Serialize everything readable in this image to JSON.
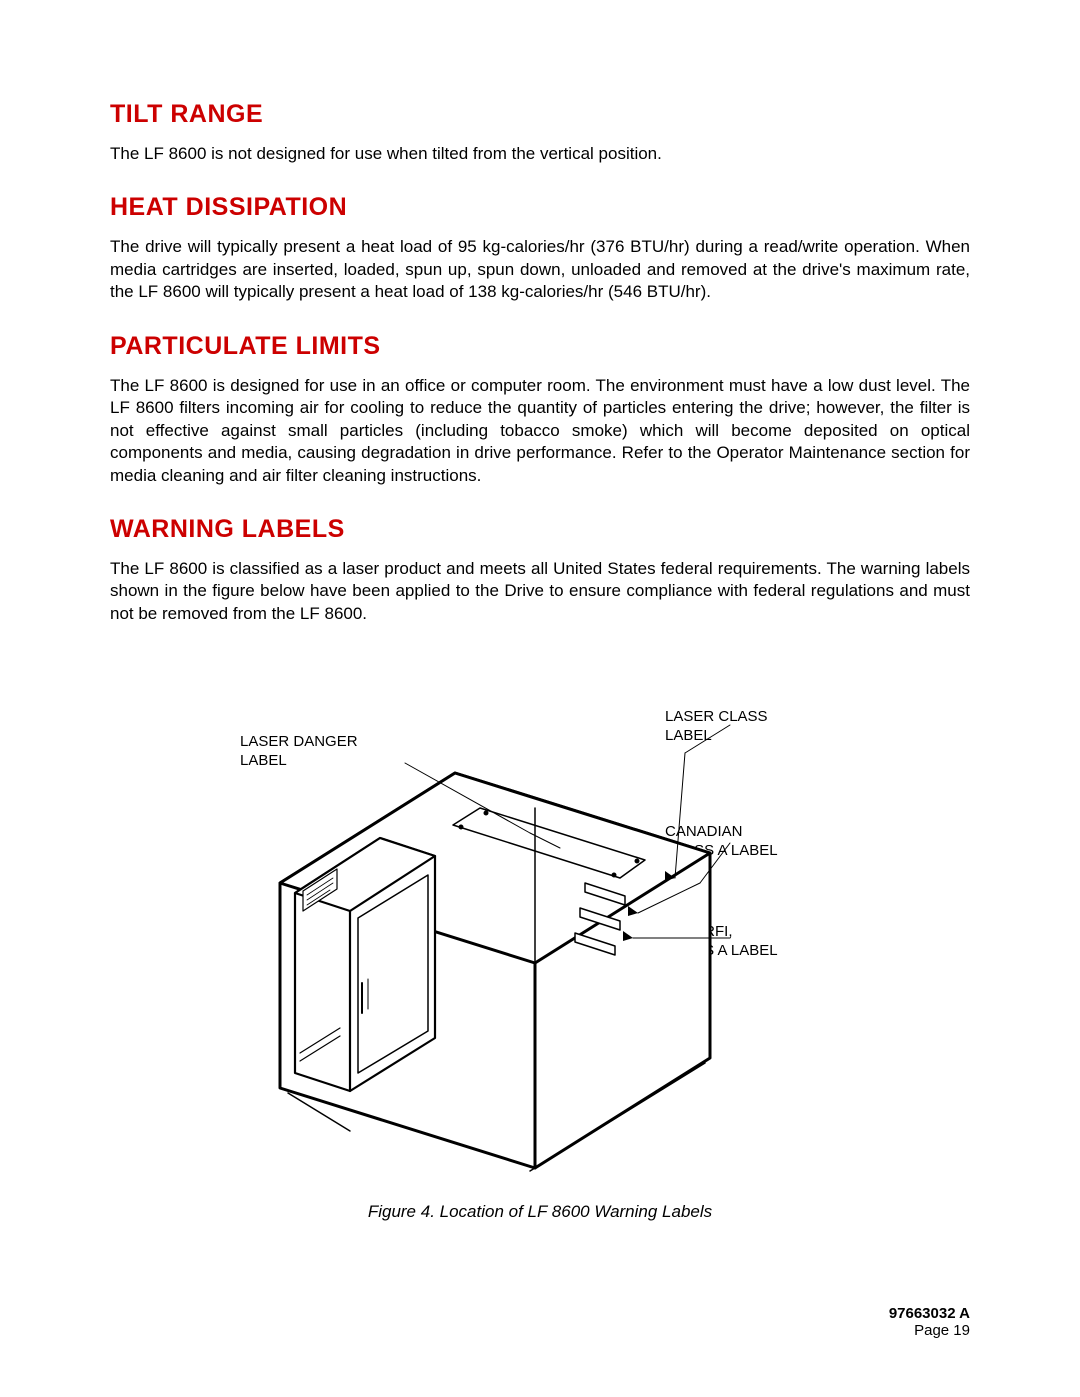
{
  "headings": {
    "tilt": {
      "text": "TILT RANGE",
      "color": "#cc0000"
    },
    "heat": {
      "text": "HEAT DISSIPATION",
      "color": "#cc0000"
    },
    "particulate": {
      "text": "PARTICULATE LIMITS",
      "color": "#cc0000"
    },
    "warning": {
      "text": "WARNING LABELS",
      "color": "#cc0000"
    }
  },
  "paragraphs": {
    "tilt": "The LF 8600 is not designed for use when tilted from the vertical position.",
    "heat": "The drive will typically present a heat load of 95 kg-calories/hr (376 BTU/hr) during a read/write operation. When media cartridges are inserted, loaded, spun up, spun down, unloaded and removed at the drive's maximum rate, the LF 8600 will typically present a heat load of 138 kg-calories/hr (546 BTU/hr).",
    "particulate": "The LF 8600 is designed for use in an office or computer room. The environment must have a low dust level. The LF 8600 filters incoming air for cooling to reduce the quantity of particles entering the drive; however, the filter is not effective against small particles (including tobacco smoke) which will become deposited on optical components and media, causing degradation in drive performance. Refer to the Operator Maintenance section for media cleaning and air filter cleaning instructions.",
    "warning": "The LF 8600 is classified as a laser product and meets all United States federal requirements. The warning labels shown in the figure below have been applied to the Drive to ensure compliance with federal regulations and must not be removed from the LF 8600."
  },
  "callouts": {
    "laser_danger": "LASER DANGER\nLABEL",
    "laser_class": "LASER CLASS\nLABEL",
    "canadian": "CANADIAN\nCLASS A LABEL",
    "fcc": "FCC, RFI,\nCLASS A LABEL"
  },
  "figure": {
    "caption": "Figure 4. Location of LF 8600 Warning Labels",
    "stroke_color": "#000000",
    "fill_color": "#ffffff",
    "stroke_width_outer": 3,
    "stroke_width_inner": 1.5
  },
  "footer": {
    "doc": "97663032 A",
    "page": "Page 19"
  },
  "body_text_color": "#000000",
  "background_color": "#ffffff"
}
